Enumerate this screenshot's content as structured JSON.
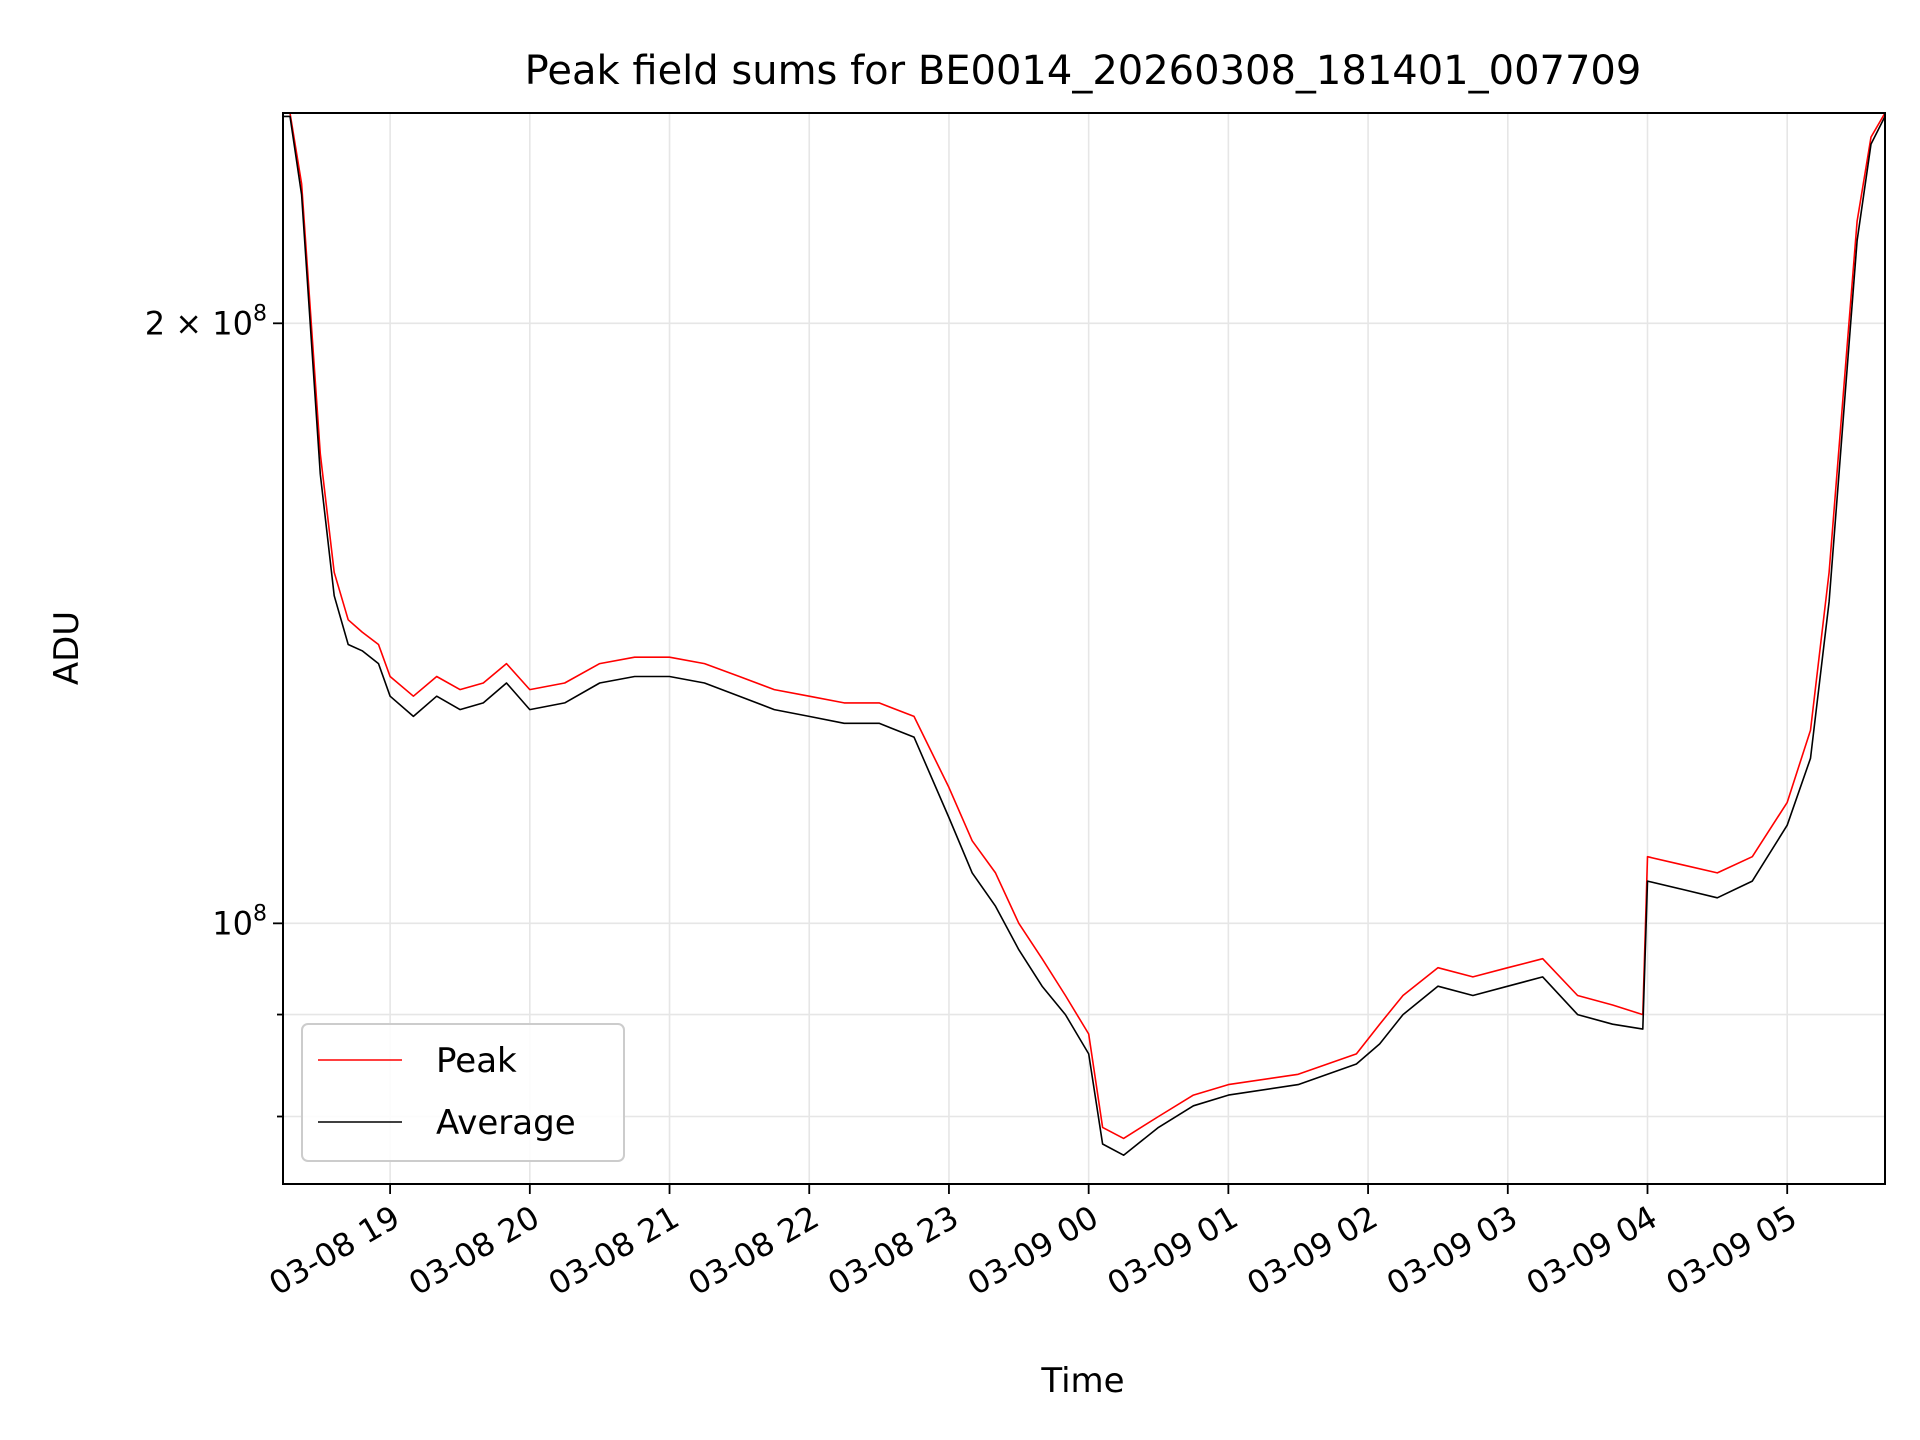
{
  "chart_data": {
    "type": "line",
    "title": "Peak field sums for BE0014_20260308_181401_007709",
    "xlabel": "Time",
    "ylabel": "ADU",
    "y_scale": "log",
    "ylim": [
      74000000,
      255000000
    ],
    "xlim": [
      "2026-03-08 18:14",
      "2026-03-09 05:42"
    ],
    "grid": true,
    "legend_position": "lower-left",
    "x_ticks": [
      {
        "value": "2026-03-08 19:00",
        "label": "03-08 19"
      },
      {
        "value": "2026-03-08 20:00",
        "label": "03-08 20"
      },
      {
        "value": "2026-03-08 21:00",
        "label": "03-08 21"
      },
      {
        "value": "2026-03-08 22:00",
        "label": "03-08 22"
      },
      {
        "value": "2026-03-08 23:00",
        "label": "03-08 23"
      },
      {
        "value": "2026-03-09 00:00",
        "label": "03-09 00"
      },
      {
        "value": "2026-03-09 01:00",
        "label": "03-09 01"
      },
      {
        "value": "2026-03-09 02:00",
        "label": "03-09 02"
      },
      {
        "value": "2026-03-09 03:00",
        "label": "03-09 03"
      },
      {
        "value": "2026-03-09 04:00",
        "label": "03-09 04"
      },
      {
        "value": "2026-03-09 05:00",
        "label": "03-09 05"
      }
    ],
    "y_major_ticks": [
      {
        "value": 100000000,
        "label_base": "10",
        "label_exp": "8"
      },
      {
        "value": 200000000,
        "label_base": "2 × 10",
        "label_exp": "8"
      }
    ],
    "y_minor_ticks": [
      80000000,
      90000000
    ],
    "series": [
      {
        "name": "Peak",
        "color": "#ff0000",
        "x": [
          "2026-03-08 18:14",
          "2026-03-08 18:17",
          "2026-03-08 18:22",
          "2026-03-08 18:30",
          "2026-03-08 18:36",
          "2026-03-08 18:42",
          "2026-03-08 18:48",
          "2026-03-08 18:55",
          "2026-03-08 19:00",
          "2026-03-08 19:10",
          "2026-03-08 19:20",
          "2026-03-08 19:30",
          "2026-03-08 19:40",
          "2026-03-08 19:50",
          "2026-03-08 20:00",
          "2026-03-08 20:15",
          "2026-03-08 20:30",
          "2026-03-08 20:45",
          "2026-03-08 21:00",
          "2026-03-08 21:15",
          "2026-03-08 21:30",
          "2026-03-08 21:45",
          "2026-03-08 22:00",
          "2026-03-08 22:15",
          "2026-03-08 22:30",
          "2026-03-08 22:45",
          "2026-03-08 23:00",
          "2026-03-08 23:10",
          "2026-03-08 23:20",
          "2026-03-08 23:30",
          "2026-03-08 23:40",
          "2026-03-08 23:50",
          "2026-03-09 00:00",
          "2026-03-09 00:06",
          "2026-03-09 00:15",
          "2026-03-09 00:30",
          "2026-03-09 00:45",
          "2026-03-09 01:00",
          "2026-03-09 01:30",
          "2026-03-09 01:55",
          "2026-03-09 02:05",
          "2026-03-09 02:15",
          "2026-03-09 02:30",
          "2026-03-09 02:45",
          "2026-03-09 03:00",
          "2026-03-09 03:15",
          "2026-03-09 03:30",
          "2026-03-09 03:45",
          "2026-03-09 03:58",
          "2026-03-09 04:00",
          "2026-03-09 04:15",
          "2026-03-09 04:30",
          "2026-03-09 04:45",
          "2026-03-09 05:00",
          "2026-03-09 05:10",
          "2026-03-09 05:18",
          "2026-03-09 05:25",
          "2026-03-09 05:30",
          "2026-03-09 05:36",
          "2026-03-09 05:42"
        ],
        "y": [
          255000000,
          255000000,
          235000000,
          172000000,
          150000000,
          142000000,
          140000000,
          138000000,
          133000000,
          130000000,
          133000000,
          131000000,
          132000000,
          135000000,
          131000000,
          132000000,
          135000000,
          136000000,
          136000000,
          135000000,
          133000000,
          131000000,
          130000000,
          129000000,
          129000000,
          127000000,
          117000000,
          110000000,
          106000000,
          100000000,
          96000000,
          92000000,
          88000000,
          79000000,
          78000000,
          80000000,
          82000000,
          83000000,
          84000000,
          86000000,
          89000000,
          92000000,
          95000000,
          94000000,
          95000000,
          96000000,
          92000000,
          91000000,
          90000000,
          108000000,
          107000000,
          106000000,
          108000000,
          115000000,
          125000000,
          150000000,
          190000000,
          225000000,
          248000000,
          255000000
        ]
      },
      {
        "name": "Average",
        "color": "#000000",
        "x": [
          "2026-03-08 18:14",
          "2026-03-08 18:17",
          "2026-03-08 18:22",
          "2026-03-08 18:30",
          "2026-03-08 18:36",
          "2026-03-08 18:42",
          "2026-03-08 18:48",
          "2026-03-08 18:55",
          "2026-03-08 19:00",
          "2026-03-08 19:10",
          "2026-03-08 19:20",
          "2026-03-08 19:30",
          "2026-03-08 19:40",
          "2026-03-08 19:50",
          "2026-03-08 20:00",
          "2026-03-08 20:15",
          "2026-03-08 20:30",
          "2026-03-08 20:45",
          "2026-03-08 21:00",
          "2026-03-08 21:15",
          "2026-03-08 21:30",
          "2026-03-08 21:45",
          "2026-03-08 22:00",
          "2026-03-08 22:15",
          "2026-03-08 22:30",
          "2026-03-08 22:45",
          "2026-03-08 23:00",
          "2026-03-08 23:10",
          "2026-03-08 23:20",
          "2026-03-08 23:30",
          "2026-03-08 23:40",
          "2026-03-08 23:50",
          "2026-03-09 00:00",
          "2026-03-09 00:06",
          "2026-03-09 00:15",
          "2026-03-09 00:30",
          "2026-03-09 00:45",
          "2026-03-09 01:00",
          "2026-03-09 01:30",
          "2026-03-09 01:55",
          "2026-03-09 02:05",
          "2026-03-09 02:15",
          "2026-03-09 02:30",
          "2026-03-09 02:45",
          "2026-03-09 03:00",
          "2026-03-09 03:15",
          "2026-03-09 03:30",
          "2026-03-09 03:45",
          "2026-03-09 03:58",
          "2026-03-09 04:00",
          "2026-03-09 04:15",
          "2026-03-09 04:30",
          "2026-03-09 04:45",
          "2026-03-09 05:00",
          "2026-03-09 05:10",
          "2026-03-09 05:18",
          "2026-03-09 05:25",
          "2026-03-09 05:30",
          "2026-03-09 05:36",
          "2026-03-09 05:42"
        ],
        "y": [
          254000000,
          254000000,
          232000000,
          168000000,
          146000000,
          138000000,
          137000000,
          135000000,
          130000000,
          127000000,
          130000000,
          128000000,
          129000000,
          132000000,
          128000000,
          129000000,
          132000000,
          133000000,
          133000000,
          132000000,
          130000000,
          128000000,
          127000000,
          126000000,
          126000000,
          124000000,
          113000000,
          106000000,
          102000000,
          97000000,
          93000000,
          90000000,
          86000000,
          77500000,
          76500000,
          79000000,
          81000000,
          82000000,
          83000000,
          85000000,
          87000000,
          90000000,
          93000000,
          92000000,
          93000000,
          94000000,
          90000000,
          89000000,
          88500000,
          105000000,
          104000000,
          103000000,
          105000000,
          112000000,
          121000000,
          145000000,
          185000000,
          220000000,
          246000000,
          254000000
        ]
      }
    ]
  }
}
